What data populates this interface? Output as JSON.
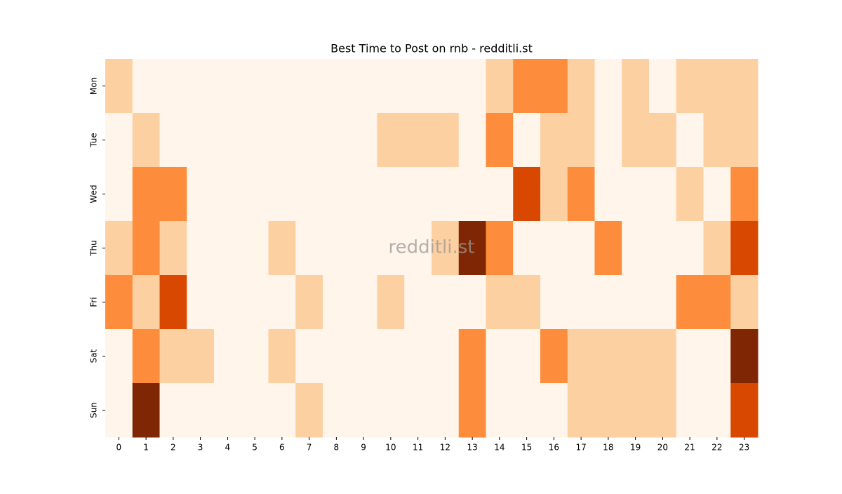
{
  "chart_data": {
    "type": "heatmap",
    "title": "Best Time to Post on rnb - redditli.st",
    "watermark": "redditli.st",
    "x": [
      0,
      1,
      2,
      3,
      4,
      5,
      6,
      7,
      8,
      9,
      10,
      11,
      12,
      13,
      14,
      15,
      16,
      17,
      18,
      19,
      20,
      21,
      22,
      23
    ],
    "y": [
      "Mon",
      "Tue",
      "Wed",
      "Thu",
      "Fri",
      "Sat",
      "Sun"
    ],
    "values": [
      [
        1,
        0,
        0,
        0,
        0,
        0,
        0,
        0,
        0,
        0,
        0,
        0,
        0,
        0,
        1,
        2,
        2,
        1,
        0,
        1,
        0,
        1,
        1,
        1
      ],
      [
        0,
        1,
        0,
        0,
        0,
        0,
        0,
        0,
        0,
        0,
        1,
        1,
        1,
        0,
        2,
        0,
        1,
        1,
        0,
        1,
        1,
        0,
        1,
        1
      ],
      [
        0,
        2,
        2,
        0,
        0,
        0,
        0,
        0,
        0,
        0,
        0,
        0,
        0,
        0,
        0,
        3,
        1,
        2,
        0,
        0,
        0,
        1,
        0,
        2
      ],
      [
        1,
        2,
        1,
        0,
        0,
        0,
        1,
        0,
        0,
        0,
        0,
        0,
        1,
        4,
        2,
        0,
        0,
        0,
        2,
        0,
        0,
        0,
        1,
        3
      ],
      [
        2,
        1,
        3,
        0,
        0,
        0,
        0,
        1,
        0,
        0,
        1,
        0,
        0,
        0,
        1,
        1,
        0,
        0,
        0,
        0,
        0,
        2,
        2,
        1
      ],
      [
        0,
        2,
        1,
        1,
        0,
        0,
        1,
        0,
        0,
        0,
        0,
        0,
        0,
        2,
        0,
        0,
        2,
        1,
        1,
        1,
        1,
        0,
        0,
        4
      ],
      [
        0,
        4,
        0,
        0,
        0,
        0,
        0,
        1,
        0,
        0,
        0,
        0,
        0,
        2,
        0,
        0,
        0,
        1,
        1,
        1,
        1,
        0,
        0,
        3
      ]
    ],
    "vlim": [
      0,
      4
    ],
    "colorscale": [
      "#fff5eb",
      "#fdd0a2",
      "#fd8d3c",
      "#d94801",
      "#7f2704"
    ]
  }
}
